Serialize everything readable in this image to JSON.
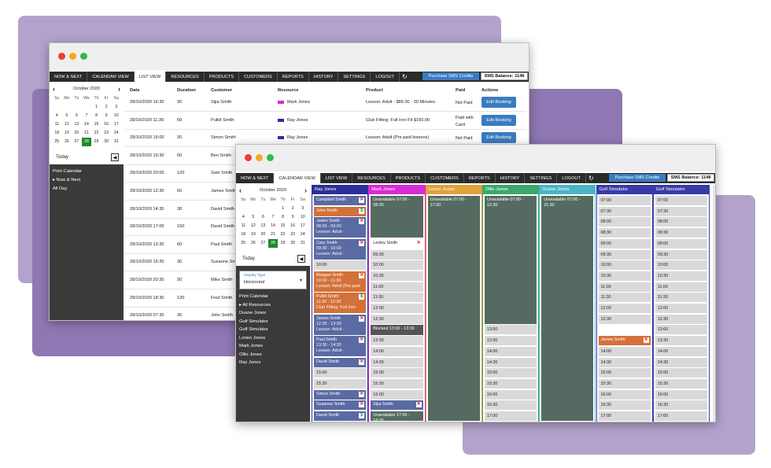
{
  "nav": {
    "tabs": [
      "NOW & NEXT",
      "CALENDAR VIEW",
      "LIST VIEW",
      "RESOURCES",
      "PRODUCTS",
      "CUSTOMERS",
      "REPORTS",
      "HISTORY",
      "SETTINGS",
      "LOGOUT"
    ],
    "refresh_icon": "refresh-icon",
    "sms_button": "Purchase SMS Credits",
    "sms_balance": "SMS Balance: 1148"
  },
  "calendar": {
    "month": "October 2020",
    "weekdays": [
      "Su",
      "Mo",
      "Tu",
      "We",
      "Th",
      "Fr",
      "Sa"
    ],
    "weeks": [
      [
        "",
        "",
        "",
        "",
        "1",
        "2",
        "3"
      ],
      [
        "4",
        "5",
        "6",
        "7",
        "8",
        "9",
        "10"
      ],
      [
        "11",
        "12",
        "13",
        "14",
        "15",
        "16",
        "17"
      ],
      [
        "18",
        "19",
        "20",
        "21",
        "22",
        "23",
        "24"
      ],
      [
        "25",
        "26",
        "27",
        "28",
        "29",
        "30",
        "31"
      ]
    ],
    "selected": "28",
    "today_label": "Today"
  },
  "list_window": {
    "sidebar_links": [
      "Print Calendar",
      "Now & Next",
      "All Day"
    ],
    "columns": [
      "Date",
      "Duration",
      "Customer",
      "Resource",
      "Product",
      "Paid",
      "Actions"
    ],
    "rows": [
      {
        "date": "28/10/2020 16:30",
        "duration": "30",
        "customer": "Sijia Smith",
        "resource": "Mark Jones",
        "product": "Lesson: Adult - $85.00 - 30 Minutes",
        "paid": "Not Paid",
        "action": "Edit Booking",
        "color": "#d82bd8"
      },
      {
        "date": "28/10/2020 11:30",
        "duration": "60",
        "customer": "Pulkit Smith",
        "resource": "Ray Jones",
        "product": "Club Fitting: Full Iron Fit $150.00",
        "paid": "Paid with Card",
        "action": "Edit Booking",
        "color": "#2e2e9a"
      },
      {
        "date": "28/10/2020 16:00",
        "duration": "30",
        "customer": "Simon Smith",
        "resource": "Ray Jones",
        "product": "Lesson: Adult (Pre paid lessons)",
        "paid": "Not Paid",
        "action": "Edit Booking",
        "color": "#2e2e9a"
      },
      {
        "date": "28/10/2020 19:30",
        "duration": "60",
        "customer": "Ben Smith",
        "resource": "",
        "product": "",
        "paid": "",
        "action": "",
        "color": ""
      },
      {
        "date": "28/10/2020 20:00",
        "duration": "120",
        "customer": "Sam Smith",
        "resource": "",
        "product": "",
        "paid": "",
        "action": "",
        "color": ""
      },
      {
        "date": "28/10/2020 12:30",
        "duration": "60",
        "customer": "James Smith",
        "resource": "",
        "product": "",
        "paid": "",
        "action": "",
        "color": ""
      },
      {
        "date": "28/10/2020 14:30",
        "duration": "30",
        "customer": "David Smith",
        "resource": "",
        "product": "",
        "paid": "",
        "action": "",
        "color": ""
      },
      {
        "date": "28/10/2020 17:00",
        "duration": "150",
        "customer": "David Smith",
        "resource": "",
        "product": "",
        "paid": "",
        "action": "",
        "color": ""
      },
      {
        "date": "28/10/2020 13:30",
        "duration": "60",
        "customer": "Paul Smith",
        "resource": "",
        "product": "",
        "paid": "",
        "action": "",
        "color": ""
      },
      {
        "date": "28/10/2020 16:30",
        "duration": "30",
        "customer": "Susanne Smith",
        "resource": "",
        "product": "",
        "paid": "",
        "action": "",
        "color": ""
      },
      {
        "date": "28/10/2020 20:30",
        "duration": "30",
        "customer": "Mike Smith",
        "resource": "",
        "product": "",
        "paid": "",
        "action": "",
        "color": ""
      },
      {
        "date": "28/10/2020 18:30",
        "duration": "120",
        "customer": "Fred Smith",
        "resource": "",
        "product": "",
        "paid": "",
        "action": "",
        "color": ""
      },
      {
        "date": "28/10/2020 07:30",
        "duration": "30",
        "customer": "John Smith",
        "resource": "",
        "product": "",
        "paid": "",
        "action": "",
        "color": ""
      }
    ]
  },
  "cal_window": {
    "display_type_label": "Display Type",
    "display_type_value": "Horizontal",
    "sidebar_links": [
      "Print Calendar",
      "All Resources",
      "Duane Jones",
      "Golf Simulator",
      "Golf Simulator",
      "Lorien Jones",
      "Mark Jones",
      "Ollie Jones",
      "Ray Jones"
    ],
    "columns": [
      {
        "name": "Ray Jones",
        "color": "#2e2e9a"
      },
      {
        "name": "Mark Jones",
        "color": "#d82bd8"
      },
      {
        "name": "Lorien Jones",
        "color": "#e0a23a"
      },
      {
        "name": "Ollie Jones",
        "color": "#3aa86a"
      },
      {
        "name": "Duane Jones",
        "color": "#49b5c7"
      },
      {
        "name": "Golf Simulator",
        "color": "#3a3aa8"
      },
      {
        "name": "Golf Simulator",
        "color": "#3a3aa8"
      }
    ],
    "ray": [
      {
        "text": "Campbell Smith",
        "kind": "blue",
        "icon": "x"
      },
      {
        "text": "John Smith",
        "kind": "orange",
        "icon": "$"
      },
      {
        "text": "Jaden Smith\n08:00 - 09:00\nLesson: Adult -",
        "kind": "blue",
        "icon": "x"
      },
      {
        "text": "Cary Smith\n09:30 - 10:00\nLesson: Adult -",
        "kind": "blue",
        "icon": "x"
      },
      {
        "text": "10:00",
        "kind": "slot",
        "icon": ""
      },
      {
        "text": "Reagan Smith\n10:30 - 11:30\nLesson: Adult (Pre paid",
        "kind": "orange",
        "icon": "x"
      },
      {
        "text": "Pulkit Smith\n11:30 - 12:30\nClub Fitting: Full Iron",
        "kind": "orange",
        "icon": "$"
      },
      {
        "text": "James Smith\n12:30 - 13:30\nLesson: Adult -",
        "kind": "blue",
        "icon": "x"
      },
      {
        "text": "Paul Smith\n13:30 - 14:30\nLesson: Adult -",
        "kind": "blue",
        "icon": "x"
      },
      {
        "text": "David Smith",
        "kind": "blue",
        "icon": "x"
      },
      {
        "text": "15:00",
        "kind": "slot",
        "icon": ""
      },
      {
        "text": "15:30",
        "kind": "slot",
        "icon": ""
      },
      {
        "text": "Simon Smith",
        "kind": "blue",
        "icon": "x"
      },
      {
        "text": "Susanne Smith",
        "kind": "blue",
        "icon": "x"
      },
      {
        "text": "David Smith",
        "kind": "blue",
        "icon": "$"
      }
    ],
    "mark": {
      "unavailable_top": "Unavailable 07:00 - 08:30",
      "booking": "Lesley Smith",
      "times": [
        "09:30",
        "10:00",
        "10:30",
        "11:00",
        "11:30",
        "12:00",
        "12:30"
      ],
      "blocked": "Blocked 13:00 - 13:30",
      "times2": [
        "13:30",
        "14:00",
        "14:30",
        "15:00",
        "15:30",
        "16:00"
      ],
      "booking2": "Sijia Smith",
      "unavailable_bottom": "Unavailable 17:00 - 18:30"
    },
    "lorien": {
      "unavailable": "Unavailable 07:00 - 17:30"
    },
    "ollie": {
      "unavailable": "Unavailable 07:00 - 12:30",
      "times": [
        "13:00",
        "13:30",
        "14:00",
        "14:30",
        "15:00",
        "15:30",
        "16:00",
        "16:30",
        "17:00"
      ]
    },
    "duane": {
      "unavailable": "Unavailable 07:00 - 21:30"
    },
    "golf1": {
      "times": [
        "07:00",
        "07:30",
        "08:00",
        "08:30",
        "09:00",
        "09:30",
        "10:00",
        "10:30",
        "11:00",
        "11:30",
        "12:00",
        "12:30"
      ],
      "booking": "James Smith",
      "times2": [
        "14:00",
        "14:30",
        "15:00",
        "15:30",
        "16:00",
        "16:30",
        "17:00"
      ]
    },
    "golf2": {
      "times": [
        "07:00",
        "07:30",
        "08:00",
        "08:30",
        "09:00",
        "09:30",
        "10:00",
        "10:30",
        "11:00",
        "11:30",
        "12:00",
        "12:30",
        "13:00",
        "13:30",
        "14:00",
        "14:30",
        "15:00",
        "15:30",
        "16:00",
        "16:30",
        "17:00"
      ]
    }
  },
  "colors": {
    "purple_bg": "#b4a5cc",
    "blue_booking": "#5a6aa3",
    "orange_booking": "#d4713a",
    "unavailable": "#556b61",
    "accent": "#3b7bc0",
    "selected_day": "#1e8a2a"
  }
}
